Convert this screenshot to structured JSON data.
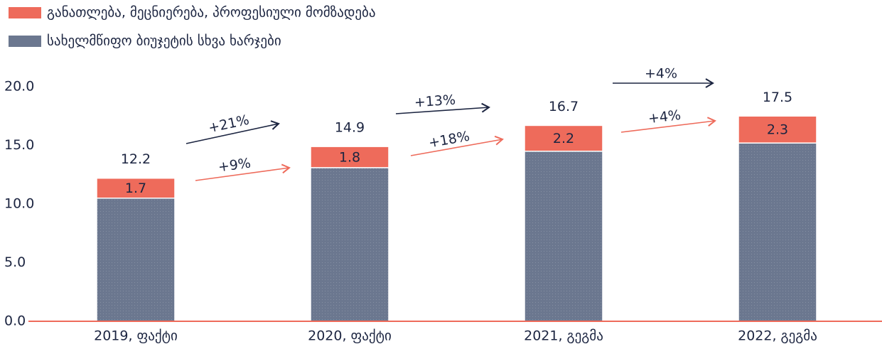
{
  "chart_data": {
    "type": "stacked_bar",
    "categories": [
      "2019, ფაქტი",
      "2020, ფაქტი",
      "2021, გეგმა",
      "2022, გეგმა"
    ],
    "series": [
      {
        "name": "სახელმწიფო ბიუჯეტის სხვა ხარჯები",
        "color": "#6b778f",
        "values": [
          10.5,
          13.1,
          14.5,
          15.2
        ]
      },
      {
        "name": "განათლება, მეცნიერება, პროფესიული მომზადება",
        "color": "#ee6b5b",
        "values": [
          1.7,
          1.8,
          2.2,
          2.3
        ]
      }
    ],
    "totals": [
      12.2,
      14.9,
      16.7,
      17.5
    ],
    "ylim": [
      0,
      20
    ],
    "yticks": [
      {
        "value": 0,
        "label": "0.0"
      },
      {
        "value": 5,
        "label": "5.0"
      },
      {
        "value": 10,
        "label": "10.0"
      },
      {
        "value": 15,
        "label": "15.0"
      },
      {
        "value": 20,
        "label": "20.0"
      }
    ],
    "annotations": [
      {
        "text": "+21%",
        "color": "#1c2541"
      },
      {
        "text": "+9%",
        "color": "#ee6b5b"
      },
      {
        "text": "+13%",
        "color": "#1c2541"
      },
      {
        "text": "+18%",
        "color": "#ee6b5b"
      },
      {
        "text": "+4%",
        "color": "#1c2541"
      },
      {
        "text": "+4%",
        "color": "#ee6b5b"
      }
    ]
  }
}
